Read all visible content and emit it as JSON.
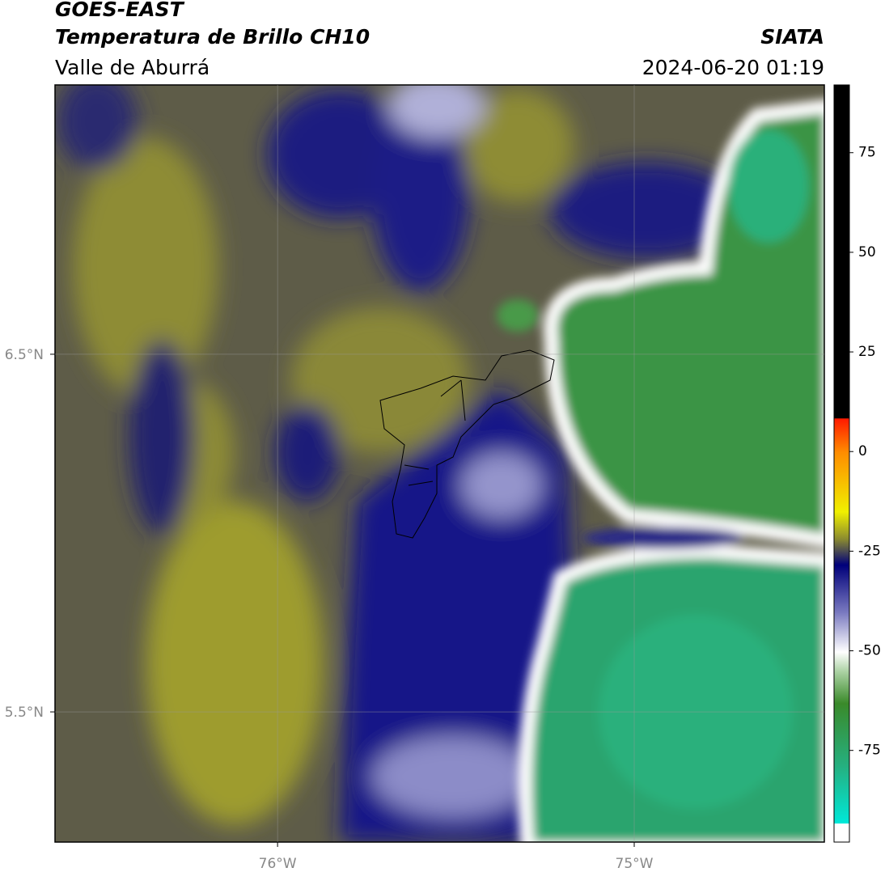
{
  "header": {
    "title": "GOES-EAST",
    "subtitle": "Temperatura de Brillo CH10",
    "region": "Valle de Aburrá",
    "source": "SIATA",
    "datetime": "2024-06-20 01:19"
  },
  "map": {
    "xlim": [
      -76.624,
      -74.467
    ],
    "ylim": [
      5.136,
      7.253
    ],
    "xticks": [
      {
        "value": -76,
        "label": "76°W"
      },
      {
        "value": -75,
        "label": "75°W"
      }
    ],
    "yticks": [
      {
        "value": 6.5,
        "label": "6.5°N"
      },
      {
        "value": 5.5,
        "label": "5.5°N"
      }
    ],
    "grid": true
  },
  "colorbar": {
    "lim": [
      -98,
      92
    ],
    "ticks": [
      75,
      50,
      25,
      0,
      -25,
      -50,
      -75
    ]
  }
}
